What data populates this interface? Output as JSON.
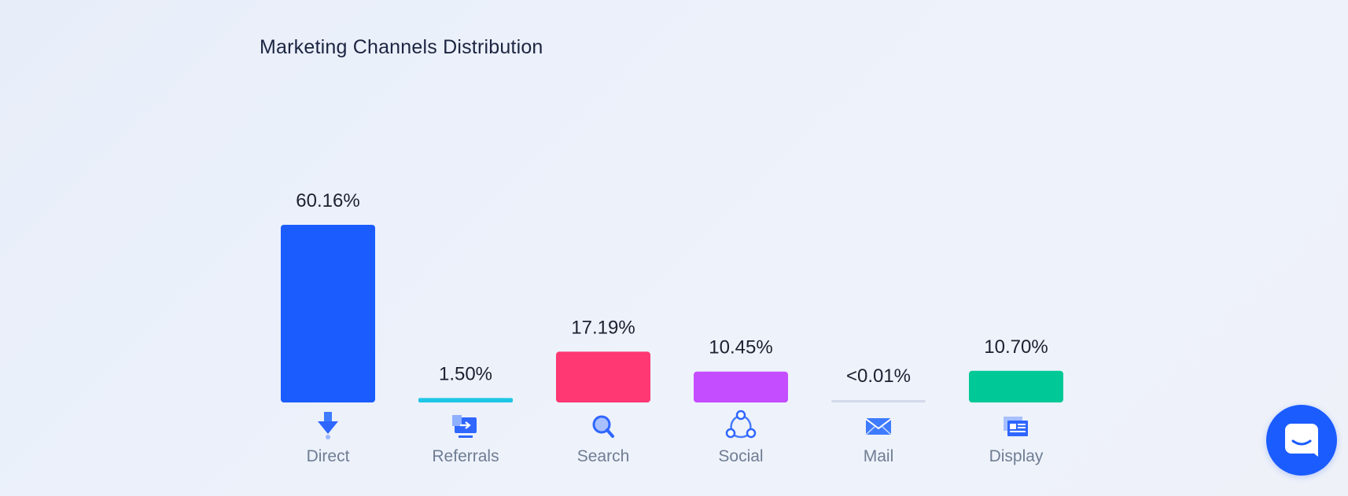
{
  "chart_data": {
    "type": "bar",
    "title": "Marketing Channels Distribution",
    "categories": [
      "Direct",
      "Referrals",
      "Search",
      "Social",
      "Mail",
      "Display"
    ],
    "values": [
      60.16,
      1.5,
      17.19,
      10.45,
      0.005,
      10.7
    ],
    "value_labels": [
      "60.16%",
      "1.50%",
      "17.19%",
      "10.45%",
      "<0.01%",
      "10.70%"
    ],
    "colors": [
      "#1b5cff",
      "#1ec6e6",
      "#ff3773",
      "#c44dff",
      "#d3daea",
      "#00c896"
    ],
    "icons": [
      "direct-arrow-icon",
      "referrals-monitor-icon",
      "search-magnifier-icon",
      "social-share-icon",
      "mail-envelope-icon",
      "display-browser-icon"
    ],
    "ylim": [
      0,
      60.16
    ],
    "grid": false,
    "legend": "none"
  },
  "chat_widget": {
    "icon": "chat-bubble-icon",
    "color": "#1b5cff"
  }
}
